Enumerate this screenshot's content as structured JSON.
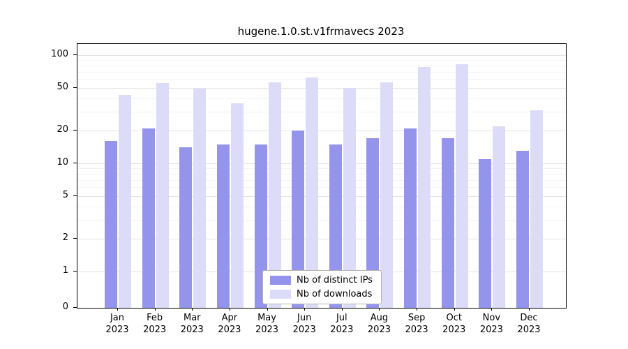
{
  "chart_data": {
    "type": "bar",
    "title": "hugene.1.0.st.v1frmavecs 2023",
    "xlabel": "",
    "ylabel": "",
    "scale": "log",
    "grid": true,
    "legend_position": "bottom-center",
    "year": "2023",
    "categories": [
      "Jan",
      "Feb",
      "Mar",
      "Apr",
      "May",
      "Jun",
      "Jul",
      "Aug",
      "Sep",
      "Oct",
      "Nov",
      "Dec"
    ],
    "series": [
      {
        "name": "Nb of distinct IPs",
        "color": "#9494ec",
        "values": [
          16,
          21,
          14,
          15,
          15,
          20,
          15,
          17,
          21,
          17,
          11,
          13
        ]
      },
      {
        "name": "Nb of downloads",
        "color": "#dcdcf8",
        "values": [
          43,
          55,
          49,
          36,
          56,
          62,
          50,
          56,
          78,
          82,
          22,
          31
        ]
      }
    ],
    "y_ticks": [
      100,
      50,
      20,
      10,
      5,
      2,
      1,
      0
    ],
    "colors": {
      "gridline_major": "#e4e4e4",
      "gridline_minor": "#f3f3f3",
      "axis": "#000000"
    }
  }
}
